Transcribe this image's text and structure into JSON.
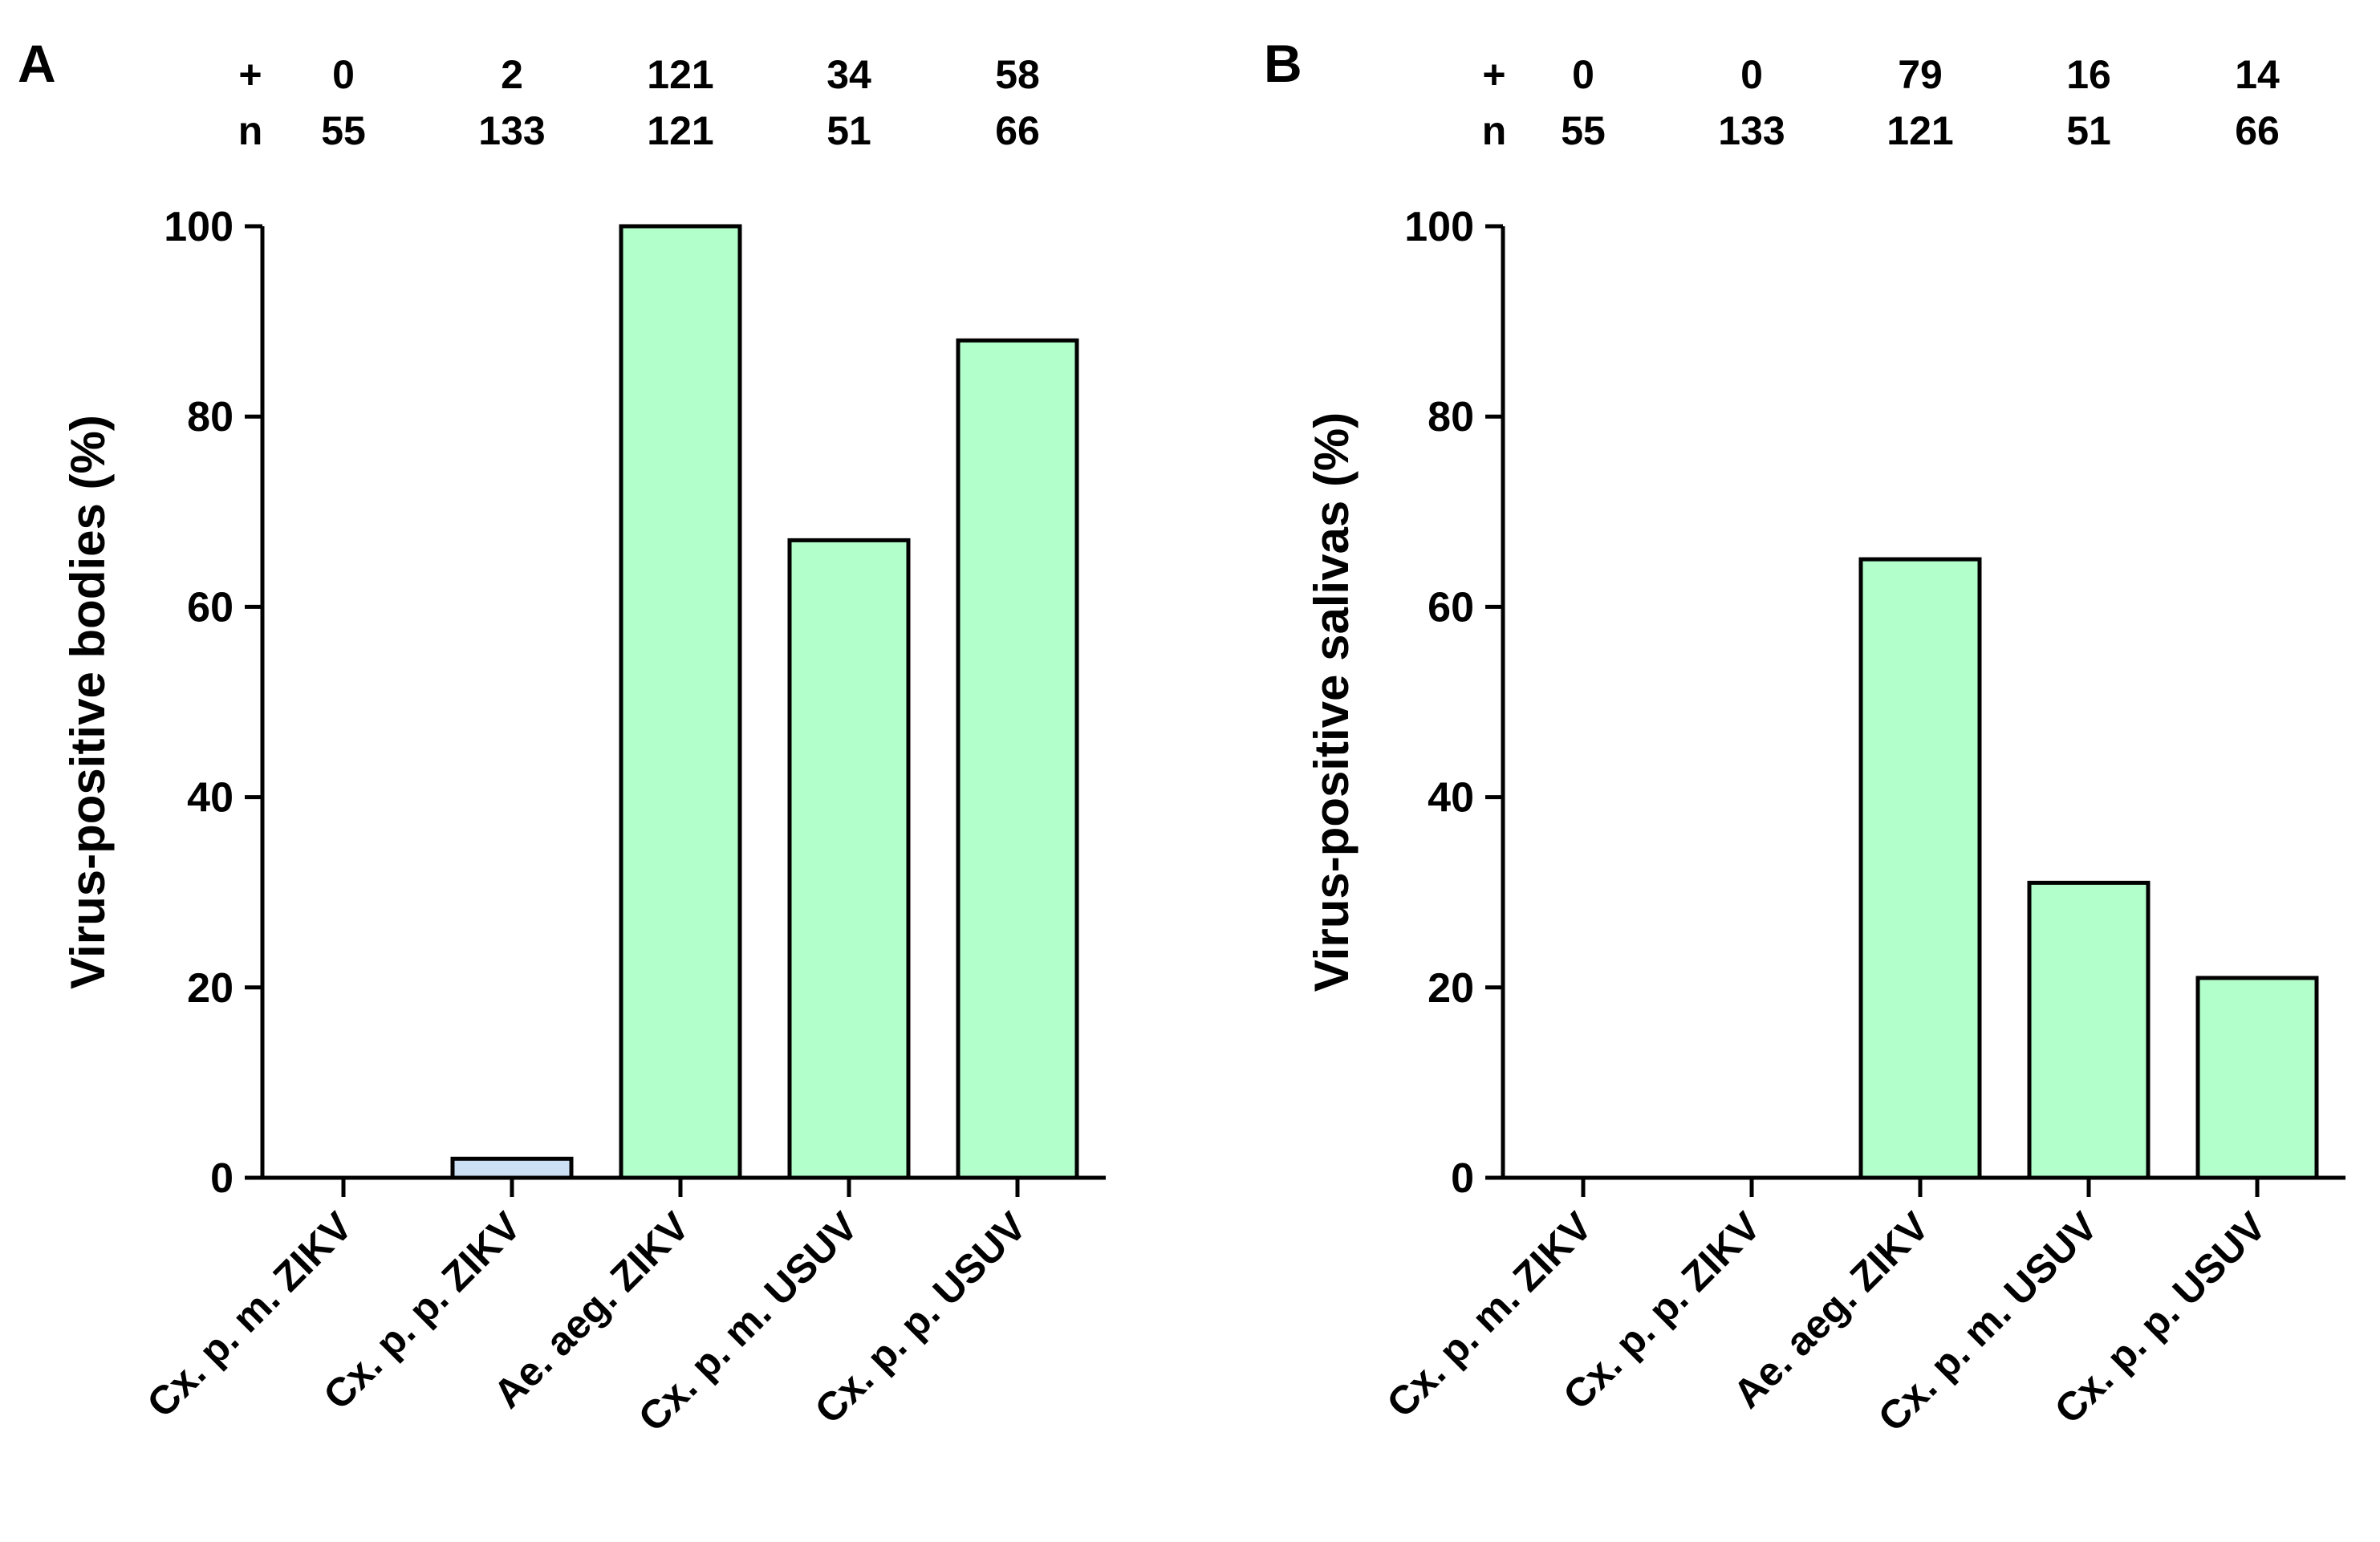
{
  "colors": {
    "green": "#b3ffcc",
    "blue": "#cce0f5",
    "stroke": "#000000"
  },
  "row_labels": {
    "positive": "+",
    "total": "n"
  },
  "chart_data": [
    {
      "panel": "A",
      "type": "bar",
      "title": "",
      "xlabel": "",
      "ylabel": "Virus-positive bodies (%)",
      "ylim": [
        0,
        100
      ],
      "yticks": [
        "0",
        "20",
        "40",
        "60",
        "80",
        "100"
      ],
      "categories": [
        "Cx. p. m. ZIKV",
        "Cx. p. p. ZIKV",
        "Ae. aeg. ZIKV",
        "Cx. p. m. USUV",
        "Cx. p. p. USUV"
      ],
      "values": [
        0,
        2,
        100,
        67,
        88
      ],
      "bar_colors": [
        "green",
        "blue",
        "green",
        "green",
        "green"
      ],
      "positive": [
        "0",
        "2",
        "121",
        "34",
        "58"
      ],
      "n": [
        "55",
        "133",
        "121",
        "51",
        "66"
      ]
    },
    {
      "panel": "B",
      "type": "bar",
      "title": "",
      "xlabel": "",
      "ylabel": "Virus-positive salivas (%)",
      "ylim": [
        0,
        100
      ],
      "yticks": [
        "0",
        "20",
        "40",
        "60",
        "80",
        "100"
      ],
      "categories": [
        "Cx. p. m. ZIKV",
        "Cx. p. p. ZIKV",
        "Ae. aeg. ZIKV",
        "Cx. p. m. USUV",
        "Cx. p. p. USUV"
      ],
      "values": [
        0,
        0,
        65,
        31,
        21
      ],
      "bar_colors": [
        "green",
        "green",
        "green",
        "green",
        "green"
      ],
      "positive": [
        "0",
        "0",
        "79",
        "16",
        "14"
      ],
      "n": [
        "55",
        "133",
        "121",
        "51",
        "66"
      ]
    }
  ]
}
